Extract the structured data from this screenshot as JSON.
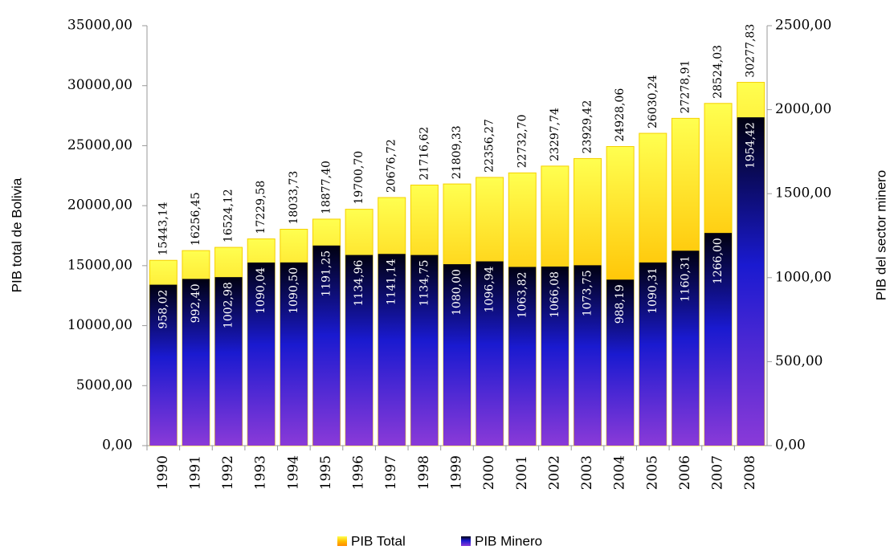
{
  "chart_data": {
    "type": "bar",
    "categories": [
      "1990",
      "1991",
      "1992",
      "1993",
      "1994",
      "1995",
      "1996",
      "1997",
      "1998",
      "1999",
      "2000",
      "2001",
      "2002",
      "2003",
      "2004",
      "2005",
      "2006",
      "2007",
      "2008"
    ],
    "y_label": "PIB  total de Bolivia",
    "y2_label": "PIB  del sector minero",
    "ylim": [
      0,
      35000
    ],
    "yticks": [
      {
        "value": 0,
        "label": "0,00"
      },
      {
        "value": 5000,
        "label": "5000,00"
      },
      {
        "value": 10000,
        "label": "10000,00"
      },
      {
        "value": 15000,
        "label": "15000,00"
      },
      {
        "value": 20000,
        "label": "20000,00"
      },
      {
        "value": 25000,
        "label": "25000,00"
      },
      {
        "value": 30000,
        "label": "30000,00"
      },
      {
        "value": 35000,
        "label": "35000,00"
      }
    ],
    "y2lim": [
      0,
      2500
    ],
    "y2ticks": [
      {
        "value": 0,
        "label": "0,00"
      },
      {
        "value": 500,
        "label": "500,00"
      },
      {
        "value": 1000,
        "label": "1000,00"
      },
      {
        "value": 1500,
        "label": "1500,00"
      },
      {
        "value": 2000,
        "label": "2000,00"
      },
      {
        "value": 2500,
        "label": "2500,00"
      }
    ],
    "series": [
      {
        "name": "PIB Total",
        "color": "#ffc000",
        "values": [
          15443.14,
          16256.45,
          16524.12,
          17229.58,
          18033.73,
          18877.4,
          19700.7,
          20676.72,
          21716.62,
          21809.33,
          22356.27,
          22732.7,
          23297.74,
          23929.42,
          24928.06,
          26030.24,
          27278.91,
          28524.03,
          30277.83
        ],
        "value_labels": [
          "15443,14",
          "16256,45",
          "16524,12",
          "17229,58",
          "18033,73",
          "18877,40",
          "19700,70",
          "20676,72",
          "21716,62",
          "21809,33",
          "22356,27",
          "22732,70",
          "23297,74",
          "23929,42",
          "24928,06",
          "26030,24",
          "27278,91",
          "28524,03",
          "30277,83"
        ]
      },
      {
        "name": "PIB Minero",
        "color": "#1a1ad0",
        "axis": "y2",
        "values": [
          958.02,
          992.4,
          1002.98,
          1090.04,
          1090.5,
          1191.25,
          1134.96,
          1141.14,
          1134.75,
          1080.0,
          1096.94,
          1063.82,
          1066.08,
          1073.75,
          988.19,
          1090.31,
          1160.31,
          1266.0,
          1954.42
        ],
        "value_labels": [
          "958,02",
          "992,40",
          "1002,98",
          "1090,04",
          "1090,50",
          "1191,25",
          "1134,96",
          "1141,14",
          "1134,75",
          "1080,00",
          "1096,94",
          "1063,82",
          "1066,08",
          "1073,75",
          "988,19",
          "1090,31",
          "1160,31",
          "1266,00",
          "1954,42"
        ]
      }
    ],
    "legend": "bottom"
  }
}
